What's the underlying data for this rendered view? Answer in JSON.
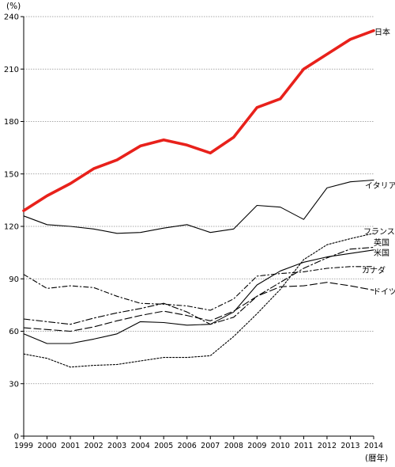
{
  "chart_data": {
    "type": "line",
    "title": "",
    "ylabel": "(%)",
    "xlabel": "(暦年)",
    "ylim": [
      0,
      240
    ],
    "yticks": [
      0,
      30,
      60,
      90,
      120,
      150,
      180,
      210,
      240
    ],
    "grid": true,
    "categories": [
      "1999",
      "2000",
      "2001",
      "2002",
      "2003",
      "2004",
      "2005",
      "2006",
      "2007",
      "2008",
      "2009",
      "2010",
      "2011",
      "2012",
      "2013",
      "2014"
    ],
    "series": [
      {
        "name": "日本",
        "color": "#e8211b",
        "style": "thick",
        "values": [
          129,
          137.5,
          144.5,
          153,
          158,
          166,
          169.5,
          166.5,
          162,
          171,
          188,
          193,
          210,
          218.5,
          227,
          232
        ]
      },
      {
        "name": "イタリア",
        "color": "#000000",
        "style": "solid",
        "values": [
          126,
          121,
          120,
          118.5,
          116,
          116.5,
          119,
          121,
          116.5,
          118.5,
          132,
          131,
          124,
          142,
          145.5,
          146.5
        ]
      },
      {
        "name": "フランス",
        "color": "#000000",
        "style": "dashdot",
        "values": [
          67,
          65.5,
          64,
          67.5,
          70.5,
          73,
          76,
          71,
          64,
          68,
          80,
          88,
          96,
          102,
          107,
          108
        ]
      },
      {
        "name": "英国",
        "color": "#000000",
        "style": "dotted",
        "values": [
          47,
          44.5,
          39.5,
          40.5,
          41,
          43,
          45,
          45,
          46,
          57,
          70,
          84,
          101,
          109.5,
          113,
          116
        ]
      },
      {
        "name": "米国",
        "color": "#000000",
        "style": "solid",
        "values": [
          58.5,
          53,
          53,
          55.5,
          58.5,
          65.5,
          65,
          63.5,
          64,
          71,
          86.5,
          94.5,
          99.5,
          102.5,
          104.5,
          106.5
        ]
      },
      {
        "name": "カナダ",
        "color": "#000000",
        "style": "dashdot2",
        "values": [
          92.5,
          84.5,
          86,
          85,
          80,
          76,
          75.5,
          74.5,
          72,
          78.5,
          91.5,
          93,
          94,
          96,
          97,
          97
        ]
      },
      {
        "name": "ドイツ",
        "color": "#000000",
        "style": "dashed",
        "values": [
          62,
          61,
          60,
          62.5,
          66,
          69,
          71.5,
          69,
          66,
          71.5,
          80,
          85.5,
          86,
          88,
          86,
          83.5
        ]
      }
    ]
  }
}
